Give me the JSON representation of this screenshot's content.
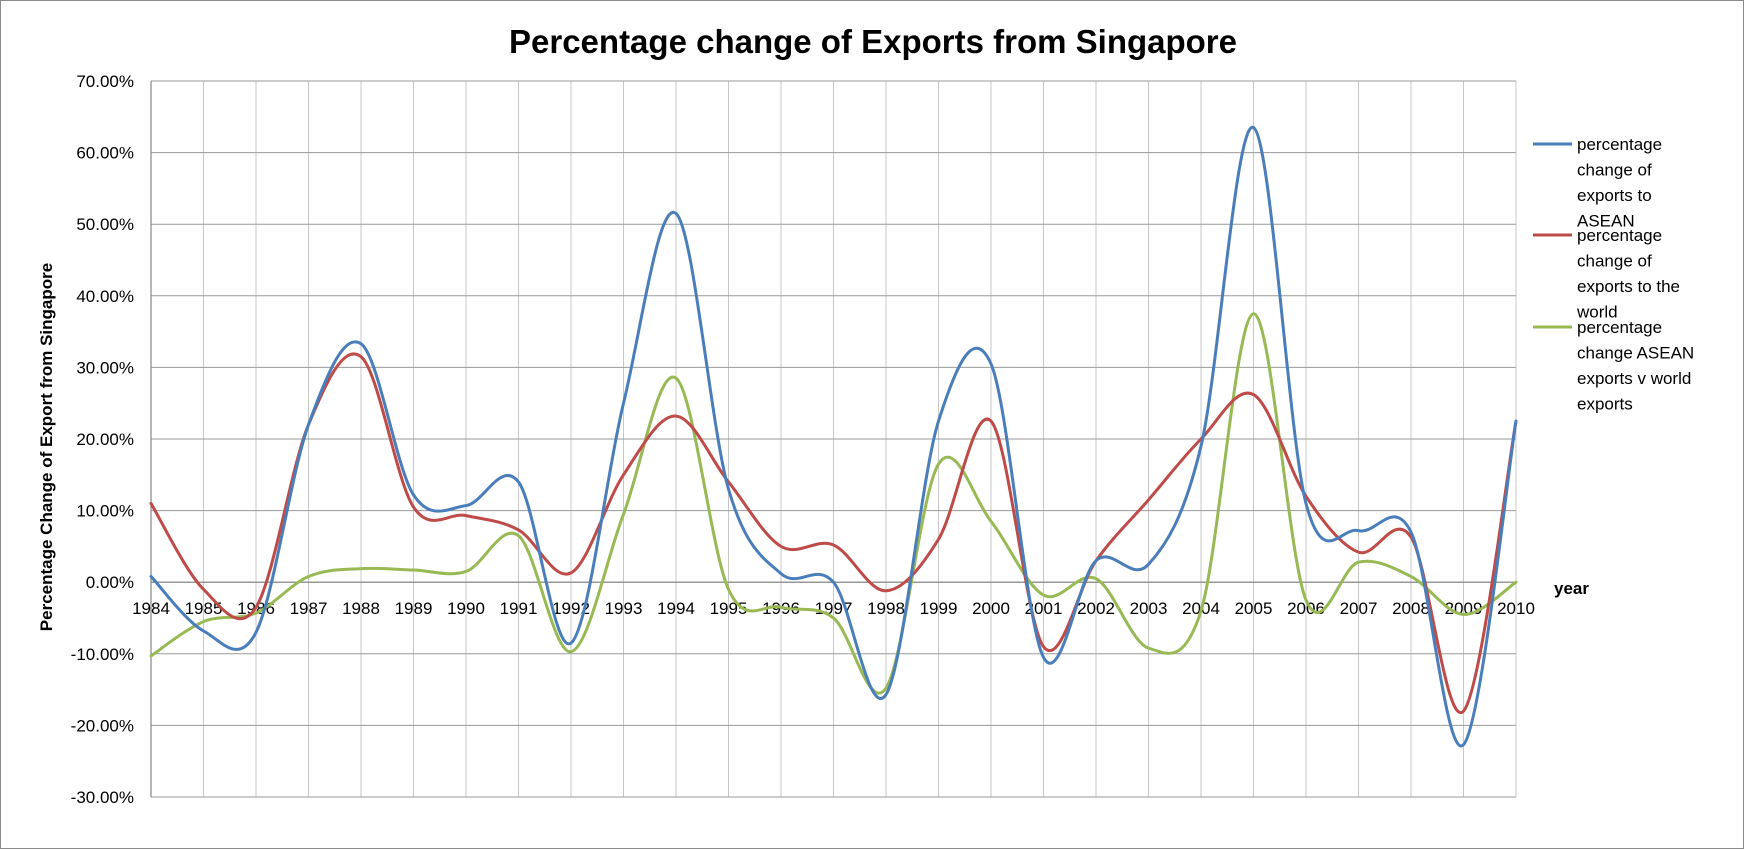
{
  "chart_data": {
    "type": "line",
    "title": "Percentage change of Exports from Singapore",
    "xlabel": "year",
    "ylabel": "Percentage Change of Export from Singapore",
    "ylim": [
      -0.3,
      0.7
    ],
    "y_tick_step": 0.1,
    "y_format": "percent_2dp",
    "grid": true,
    "smooth": true,
    "legend_position": "right",
    "categories": [
      "1984",
      "1985",
      "1986",
      "1987",
      "1988",
      "1989",
      "1990",
      "1991",
      "1992",
      "1993",
      "1994",
      "1995",
      "1996",
      "1997",
      "1998",
      "1999",
      "2000",
      "2001",
      "2002",
      "2003",
      "2004",
      "2005",
      "2006",
      "2007",
      "2008",
      "2009",
      "2010"
    ],
    "series": [
      {
        "name": "percentage change of exports to ASEAN",
        "color": "#4a7ebb",
        "values": [
          0.008,
          -0.068,
          -0.07,
          0.22,
          0.333,
          0.122,
          0.107,
          0.14,
          -0.085,
          0.25,
          0.515,
          0.13,
          0.012,
          0.0,
          -0.157,
          0.225,
          0.305,
          -0.105,
          0.03,
          0.025,
          0.19,
          0.635,
          0.11,
          0.072,
          0.07,
          -0.227,
          0.225
        ]
      },
      {
        "name": "percentage change of exports to the world",
        "color": "#be4b48",
        "values": [
          0.11,
          -0.01,
          -0.035,
          0.22,
          0.315,
          0.105,
          0.093,
          0.073,
          0.013,
          0.15,
          0.232,
          0.14,
          0.05,
          0.052,
          -0.012,
          0.06,
          0.225,
          -0.09,
          0.03,
          0.115,
          0.2,
          0.262,
          0.12,
          0.042,
          0.063,
          -0.18,
          0.225
        ]
      },
      {
        "name": "percentage change ASEAN exports v world exports",
        "color": "#98b954",
        "values": [
          -0.103,
          -0.055,
          -0.043,
          0.008,
          0.019,
          0.017,
          0.015,
          0.065,
          -0.097,
          0.095,
          0.285,
          -0.01,
          -0.035,
          -0.05,
          -0.148,
          0.165,
          0.085,
          -0.018,
          0.005,
          -0.092,
          -0.04,
          0.375,
          -0.025,
          0.028,
          0.008,
          -0.045,
          0.0
        ]
      }
    ]
  }
}
